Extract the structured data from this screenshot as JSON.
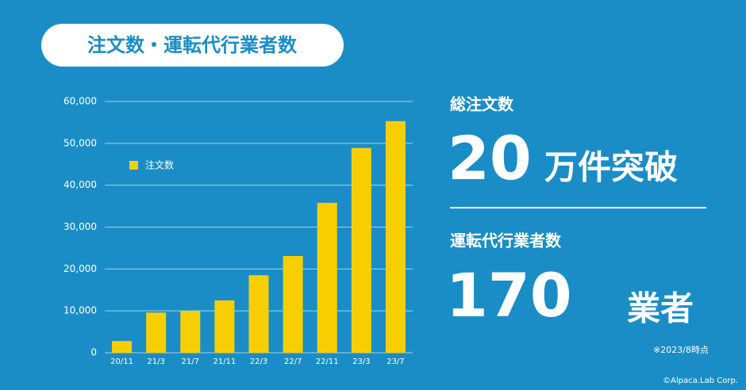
{
  "chart_data": {
    "type": "bar",
    "title": "注文数・運転代行業者数",
    "categories": [
      "20/11",
      "21/3",
      "21/7",
      "21/11",
      "22/3",
      "22/7",
      "22/11",
      "23/3",
      "23/7"
    ],
    "series": [
      {
        "name": "注文数",
        "color": "#f7cf00",
        "values": [
          2800,
          9600,
          10000,
          12500,
          18500,
          23100,
          35800,
          48900,
          55300
        ]
      }
    ],
    "ylim": [
      0,
      60000
    ],
    "yticks": [
      0,
      {
        "value": 10000,
        "label": "10,000"
      },
      {
        "value": 20000,
        "label": "20,000"
      },
      {
        "value": 30000,
        "label": "30,000"
      },
      {
        "value": 40000,
        "label": "40,000"
      },
      {
        "value": 50000,
        "label": "50,000"
      },
      {
        "value": 60000,
        "label": "60,000"
      }
    ],
    "grid": true
  },
  "highlights": [
    {
      "label": "総注文数",
      "value": 20,
      "unit": "万件突破"
    },
    {
      "label": "運転代行業者数",
      "value": 170,
      "unit": "業者"
    }
  ],
  "note": "※2023/8時点",
  "copyright": "©Alpaca.Lab Corp."
}
